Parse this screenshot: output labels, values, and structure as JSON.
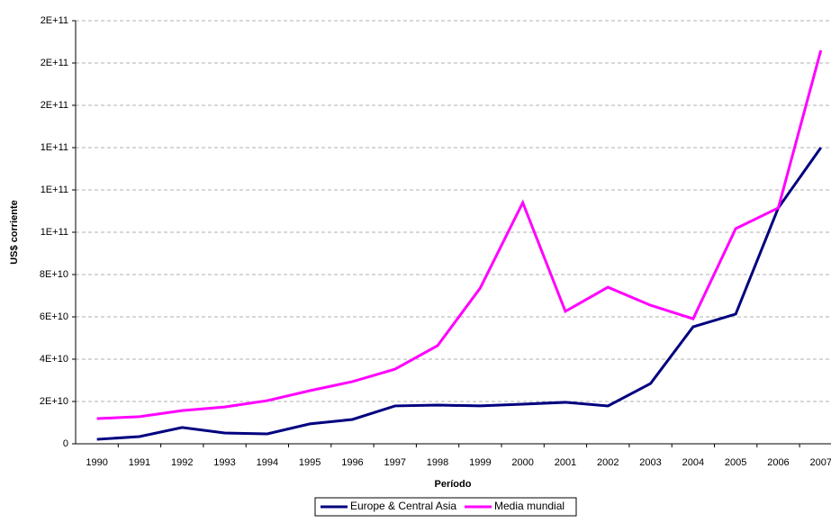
{
  "chart_data": {
    "type": "line",
    "y_label": "US$ corriente",
    "x_label": "Período",
    "categories": [
      "1990",
      "1991",
      "1992",
      "1993",
      "1994",
      "1995",
      "1996",
      "1997",
      "1998",
      "1999",
      "2000",
      "2001",
      "2002",
      "2003",
      "2004",
      "2005",
      "2006",
      "2007"
    ],
    "series": [
      {
        "name": "Europe & Central Asia",
        "color": "#000080",
        "values": [
          2100000000,
          3400000000,
          7700000000,
          5100000000,
          4700000000,
          9400000000,
          11500000000,
          17900000000,
          18300000000,
          17900000000,
          18700000000,
          19600000000,
          17900000000,
          28500000000,
          55300000000,
          61300000000,
          111500000000,
          140000000000
        ]
      },
      {
        "name": "Media mundial",
        "color": "#ff00ff",
        "values": [
          11900000000,
          12800000000,
          15700000000,
          17400000000,
          20400000000,
          25100000000,
          29400000000,
          35300000000,
          46400000000,
          73600000000,
          114000000000,
          62600000000,
          74000000000,
          65500000000,
          59100000000,
          101700000000,
          111500000000,
          186000000000
        ]
      }
    ],
    "ylim": [
      0,
      200000000000
    ],
    "yticks": [
      0,
      {
        "value": 20000000000,
        "label": "2E+10"
      },
      {
        "value": 40000000000,
        "label": "4E+10"
      },
      {
        "value": 60000000000,
        "label": "6E+10"
      },
      {
        "value": 80000000000,
        "label": "8E+10"
      },
      {
        "value": 100000000000,
        "label": "1E+11"
      },
      {
        "value": 120000000000,
        "label": "1E+11"
      },
      {
        "value": 140000000000,
        "label": "1E+11"
      },
      {
        "value": 160000000000,
        "label": "2E+11"
      },
      {
        "value": 180000000000,
        "label": "2E+11"
      },
      {
        "value": 200000000000,
        "label": "2E+11"
      }
    ],
    "grid": true
  }
}
